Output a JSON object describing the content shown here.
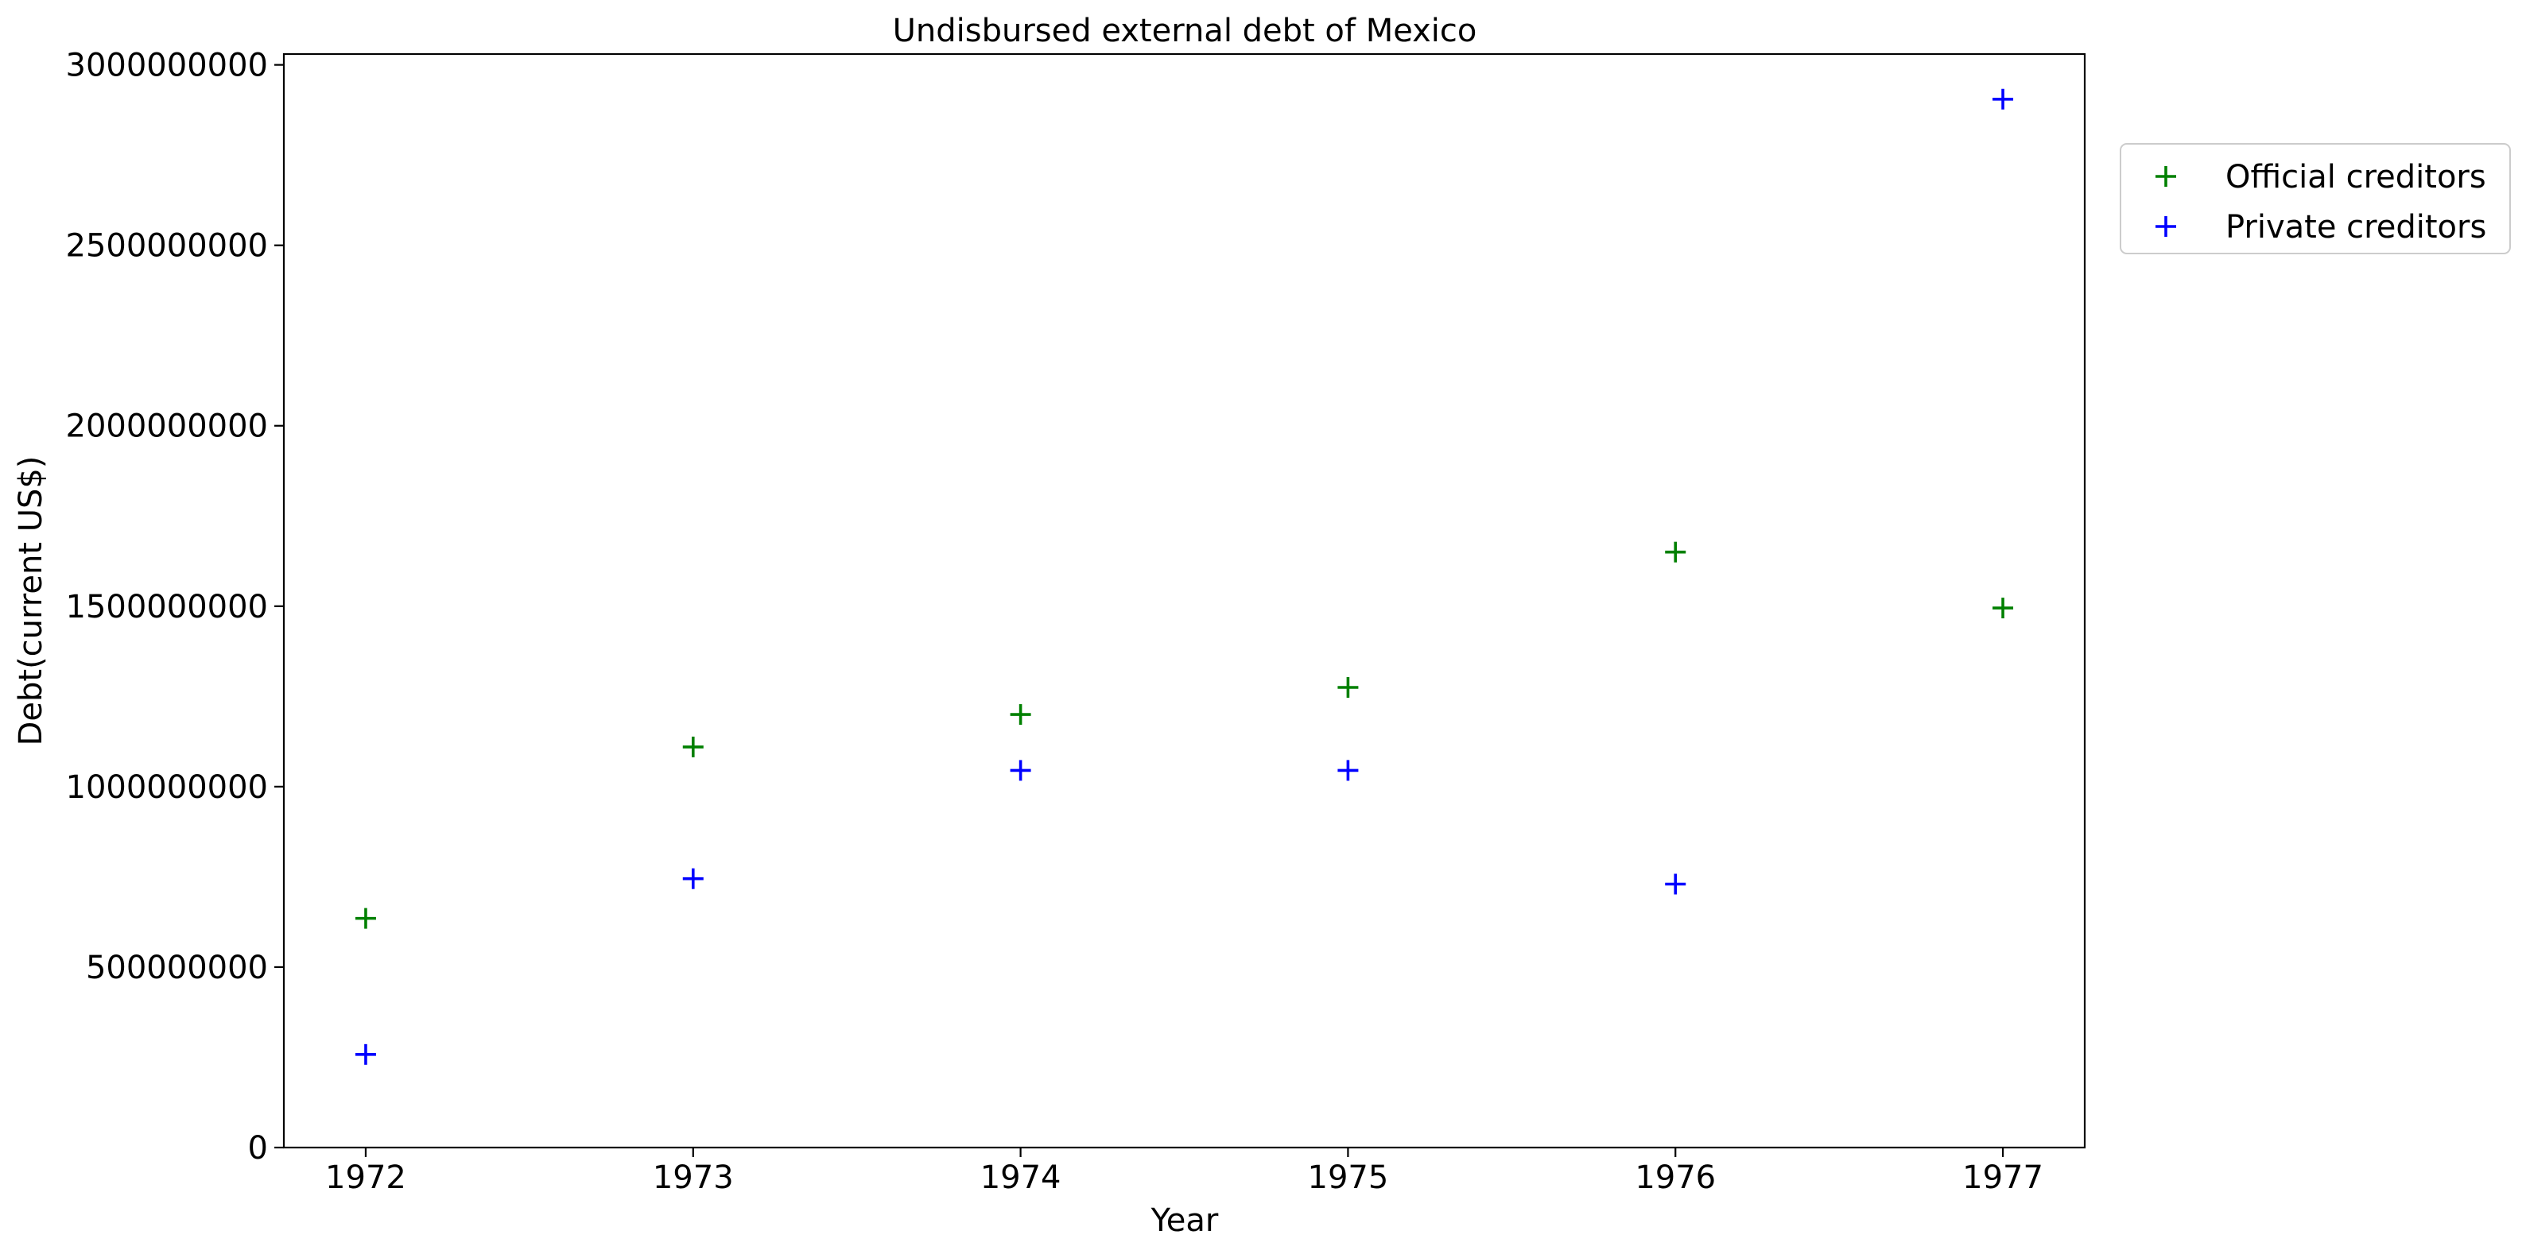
{
  "chart_data": {
    "type": "scatter",
    "title": "Undisbursed external debt of Mexico",
    "xlabel": "Year",
    "ylabel": "Debt(current US$)",
    "x": [
      1972,
      1973,
      1974,
      1975,
      1976,
      1977
    ],
    "xticks": [
      "1972",
      "1973",
      "1974",
      "1975",
      "1976",
      "1977"
    ],
    "xlim": [
      1971.75,
      1977.25
    ],
    "yticks": [
      0,
      500000000,
      1000000000,
      1500000000,
      2000000000,
      2500000000,
      3000000000
    ],
    "ytick_labels": [
      "0",
      "500000000",
      "1000000000",
      "1500000000",
      "2000000000",
      "2500000000",
      "3000000000"
    ],
    "ylim": [
      0,
      3030000000
    ],
    "grid": false,
    "legend_position": "outside right, upper",
    "marker": "+",
    "series": [
      {
        "name": "Official creditors",
        "color": "#008000",
        "values": [
          635000000,
          1110000000,
          1200000000,
          1275000000,
          1650000000,
          1495000000
        ]
      },
      {
        "name": "Private creditors",
        "color": "#0000ff",
        "values": [
          258000000,
          745000000,
          1045000000,
          1045000000,
          730000000,
          2905000000
        ]
      }
    ]
  }
}
